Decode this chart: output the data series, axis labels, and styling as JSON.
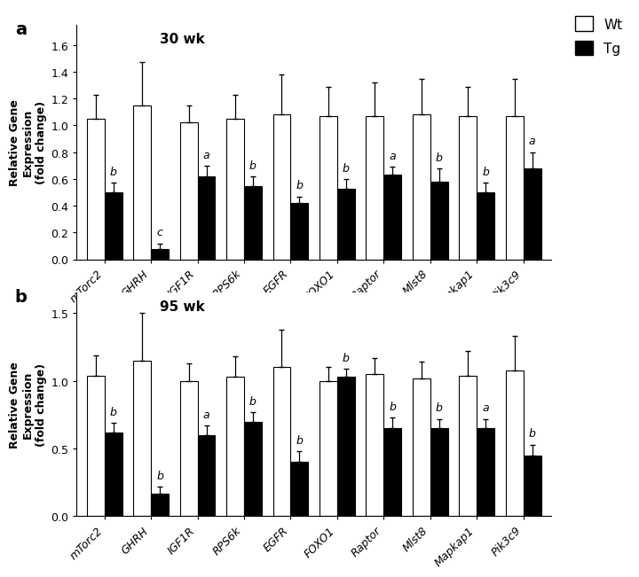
{
  "categories": [
    "mTorc2",
    "GHRH",
    "IGF1R",
    "RPS6k",
    "EGFR",
    "FOXO1",
    "Raptor",
    "Mlst8",
    "Mapkap1",
    "Pik3c9"
  ],
  "panel_a": {
    "title": "30 wk",
    "wt_values": [
      1.05,
      1.15,
      1.02,
      1.05,
      1.08,
      1.07,
      1.07,
      1.08,
      1.07,
      1.07
    ],
    "tg_values": [
      0.5,
      0.08,
      0.62,
      0.55,
      0.42,
      0.53,
      0.63,
      0.58,
      0.5,
      0.68
    ],
    "wt_errors": [
      0.18,
      0.32,
      0.13,
      0.18,
      0.3,
      0.22,
      0.25,
      0.27,
      0.22,
      0.28
    ],
    "tg_errors": [
      0.07,
      0.04,
      0.08,
      0.07,
      0.05,
      0.07,
      0.06,
      0.1,
      0.07,
      0.12
    ],
    "tg_labels": [
      "b",
      "c",
      "a",
      "b",
      "b",
      "b",
      "a",
      "b",
      "b",
      "a"
    ],
    "ylim": [
      0,
      1.75
    ],
    "yticks": [
      0,
      0.2,
      0.4,
      0.6,
      0.8,
      1.0,
      1.2,
      1.4,
      1.6
    ]
  },
  "panel_b": {
    "title": "95 wk",
    "wt_values": [
      1.04,
      1.15,
      1.0,
      1.03,
      1.1,
      1.0,
      1.05,
      1.02,
      1.04,
      1.08
    ],
    "tg_values": [
      0.62,
      0.17,
      0.6,
      0.7,
      0.4,
      1.03,
      0.65,
      0.65,
      0.65,
      0.45
    ],
    "wt_errors": [
      0.15,
      0.35,
      0.13,
      0.15,
      0.28,
      0.1,
      0.12,
      0.12,
      0.18,
      0.25
    ],
    "tg_errors": [
      0.07,
      0.05,
      0.07,
      0.07,
      0.08,
      0.06,
      0.08,
      0.07,
      0.07,
      0.08
    ],
    "tg_labels": [
      "b",
      "b",
      "a",
      "b",
      "b",
      "b",
      "b",
      "b",
      "a",
      "b"
    ],
    "ylim": [
      0,
      1.65
    ],
    "yticks": [
      0,
      0.5,
      1.0,
      1.5
    ]
  },
  "ylabel": "Relative Gene\nExpression\n(fold change)",
  "wt_color": "white",
  "tg_color": "black",
  "bar_edge_color": "black",
  "bar_width": 0.38,
  "legend_labels": [
    "Wt",
    "Tg"
  ]
}
